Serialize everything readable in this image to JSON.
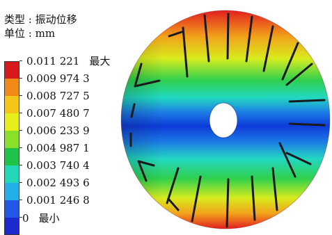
{
  "header": {
    "type_line": "类型 : 振动位移",
    "unit_line": "单位 : mm"
  },
  "legend": {
    "colors": [
      "#d7191c",
      "#f08a17",
      "#f5c618",
      "#e6ee1c",
      "#88e02a",
      "#20c34a",
      "#22d8b8",
      "#22aee6",
      "#2257e8",
      "#1b2bd0"
    ],
    "labels": [
      {
        "value": "0.011 221",
        "suffix": "最大"
      },
      {
        "value": "0.009 974 3",
        "suffix": ""
      },
      {
        "value": "0.008 727 5",
        "suffix": ""
      },
      {
        "value": "0.007 480 7",
        "suffix": ""
      },
      {
        "value": "0.006 233 9",
        "suffix": ""
      },
      {
        "value": "0.004 987 1",
        "suffix": ""
      },
      {
        "value": "0.003 740 4",
        "suffix": ""
      },
      {
        "value": "0.002 493 6",
        "suffix": ""
      },
      {
        "value": "0.001 246 8",
        "suffix": ""
      },
      {
        "value": "0",
        "suffix": "最小"
      }
    ]
  },
  "contour": {
    "max_color": "#e21f1f",
    "min_color": "#0d3bd8"
  }
}
